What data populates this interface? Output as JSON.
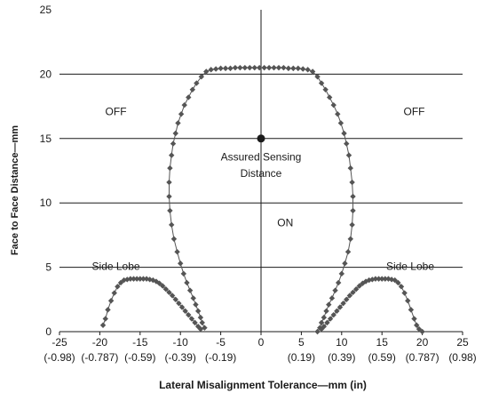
{
  "chart_data": {
    "type": "scatter",
    "xlabel": "Lateral Misalignment Tolerance—mm (in)",
    "ylabel": "Face to Face Distance—mm",
    "xlim": [
      -25,
      25
    ],
    "ylim": [
      0,
      25
    ],
    "grid": "horizontal",
    "x_ticks": [
      {
        "value": -25,
        "label": "-25",
        "sub": "(-0.98)"
      },
      {
        "value": -20,
        "label": "-20",
        "sub": "(-0.787)"
      },
      {
        "value": -15,
        "label": "-15",
        "sub": "(-0.59)"
      },
      {
        "value": -10,
        "label": "-10",
        "sub": "(-0.39)"
      },
      {
        "value": -5,
        "label": "-5",
        "sub": "(-0.19)"
      },
      {
        "value": 0,
        "label": "0",
        "sub": ""
      },
      {
        "value": 5,
        "label": "5",
        "sub": "(0.19)"
      },
      {
        "value": 10,
        "label": "10",
        "sub": "(0.39)"
      },
      {
        "value": 15,
        "label": "15",
        "sub": "(0.59)"
      },
      {
        "value": 20,
        "label": "20",
        "sub": "(0.787)"
      },
      {
        "value": 25,
        "label": "25",
        "sub": "(0.98)"
      }
    ],
    "y_ticks": [
      {
        "value": 0,
        "label": "0"
      },
      {
        "value": 5,
        "label": "5"
      },
      {
        "value": 10,
        "label": "10"
      },
      {
        "value": 15,
        "label": "15"
      },
      {
        "value": 20,
        "label": "20"
      },
      {
        "value": 25,
        "label": "25"
      }
    ],
    "marker_color": "#555555",
    "line_color": "#555555",
    "series": [
      {
        "x": [
          -7.0,
          -7.3,
          -7.5,
          -7.8,
          -8.1,
          -8.4,
          -8.8,
          -9.2,
          -9.6,
          -10.0,
          -10.4,
          -10.8,
          -11.1,
          -11.3,
          -11.4,
          -11.4,
          -11.3,
          -11.1,
          -10.9,
          -10.6,
          -10.3,
          -9.9,
          -9.5,
          -9.0,
          -8.5,
          -8.0,
          -7.4,
          -6.8,
          -6.2,
          -5.6,
          -5.0,
          -4.4,
          -3.8,
          -3.2,
          -2.6,
          -2.0,
          -1.4,
          -0.8,
          -0.2,
          0.4,
          1.0,
          1.6,
          2.2,
          2.8,
          3.4,
          4.0,
          4.6,
          5.2,
          5.8,
          6.4,
          7.0,
          7.5,
          8.0,
          8.5,
          9.0,
          9.5,
          9.9,
          10.3,
          10.6,
          10.9,
          11.1,
          11.3,
          11.4,
          11.4,
          11.3,
          11.1,
          10.8,
          10.4,
          10.0,
          9.6,
          9.2,
          8.8,
          8.4,
          8.1,
          7.8,
          7.5,
          7.3,
          7.0
        ],
        "y": [
          0.3,
          0.7,
          1.1,
          1.6,
          2.1,
          2.6,
          3.2,
          3.8,
          4.5,
          5.3,
          6.2,
          7.2,
          8.3,
          9.4,
          10.5,
          11.6,
          12.7,
          13.7,
          14.6,
          15.4,
          16.2,
          16.9,
          17.6,
          18.2,
          18.8,
          19.3,
          19.8,
          20.2,
          20.35,
          20.4,
          20.45,
          20.45,
          20.45,
          20.5,
          20.5,
          20.5,
          20.5,
          20.5,
          20.5,
          20.5,
          20.5,
          20.5,
          20.5,
          20.5,
          20.45,
          20.45,
          20.45,
          20.4,
          20.35,
          20.2,
          19.8,
          19.3,
          18.8,
          18.2,
          17.6,
          16.9,
          16.2,
          15.4,
          14.6,
          13.7,
          12.7,
          11.6,
          10.5,
          9.4,
          8.3,
          7.2,
          6.2,
          5.3,
          4.5,
          3.8,
          3.2,
          2.6,
          2.1,
          1.6,
          1.1,
          0.7,
          0.3,
          0.0
        ]
      },
      {
        "x": [
          -19.6,
          -19.3,
          -19.0,
          -18.6,
          -18.2,
          -17.8,
          -17.4,
          -17.0,
          -16.6,
          -16.2,
          -15.8,
          -15.4,
          -15.0,
          -14.6,
          -14.2,
          -13.8,
          -13.4,
          -13.0,
          -12.6,
          -12.2,
          -11.8,
          -11.4,
          -11.0,
          -10.6,
          -10.2,
          -9.8,
          -9.4,
          -9.0,
          -8.6,
          -8.2,
          -7.8,
          -7.5
        ],
        "y": [
          0.5,
          1.0,
          1.7,
          2.4,
          3.0,
          3.5,
          3.8,
          4.0,
          4.05,
          4.1,
          4.1,
          4.1,
          4.1,
          4.1,
          4.1,
          4.05,
          4.0,
          3.9,
          3.75,
          3.55,
          3.3,
          3.05,
          2.8,
          2.5,
          2.2,
          1.9,
          1.6,
          1.3,
          1.0,
          0.7,
          0.4,
          0.2
        ]
      },
      {
        "x": [
          7.5,
          7.8,
          8.2,
          8.6,
          9.0,
          9.4,
          9.8,
          10.2,
          10.6,
          11.0,
          11.4,
          11.8,
          12.2,
          12.6,
          13.0,
          13.4,
          13.8,
          14.2,
          14.6,
          15.0,
          15.4,
          15.8,
          16.2,
          16.6,
          17.0,
          17.4,
          17.8,
          18.2,
          18.6,
          19.0,
          19.3,
          19.6,
          20.0
        ],
        "y": [
          0.2,
          0.4,
          0.7,
          1.0,
          1.3,
          1.6,
          1.9,
          2.2,
          2.5,
          2.8,
          3.05,
          3.3,
          3.55,
          3.75,
          3.9,
          4.0,
          4.05,
          4.1,
          4.1,
          4.1,
          4.1,
          4.1,
          4.05,
          4.0,
          3.8,
          3.5,
          3.0,
          2.4,
          1.7,
          1.0,
          0.5,
          0.2,
          0.0
        ]
      }
    ],
    "highlight_point": {
      "x": 0,
      "y": 15,
      "color": "#1a1a1a"
    },
    "annotations": [
      {
        "text": "OFF",
        "x": -18,
        "y": 16.8
      },
      {
        "text": "OFF",
        "x": 19,
        "y": 16.8
      },
      {
        "text": "Assured Sensing",
        "x": 0,
        "y": 13.3
      },
      {
        "text": "Distance",
        "x": 0,
        "y": 12.0
      },
      {
        "text": "ON",
        "x": 3,
        "y": 8.2
      },
      {
        "text": "Side Lobe",
        "x": -18,
        "y": 4.8
      },
      {
        "text": "Side Lobe",
        "x": 18.5,
        "y": 4.8
      }
    ]
  }
}
